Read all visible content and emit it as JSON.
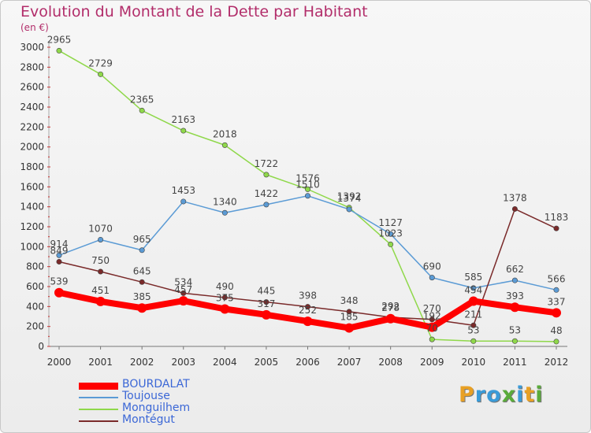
{
  "title": "Evolution du Montant de la Dette par Habitant",
  "subtitle": "(en €)",
  "logo": {
    "text": "Proxiti",
    "colors": [
      "#e8a024",
      "#3a9bd8",
      "#3a9bd8",
      "#5aab3a",
      "#3a9bd8",
      "#e8a024",
      "#5aab3a"
    ]
  },
  "chart_data": {
    "type": "line",
    "title": "Evolution du Montant de la Dette par Habitant",
    "ylabel": "(en €)",
    "x": [
      "2000",
      "2001",
      "2002",
      "2003",
      "2004",
      "2005",
      "2006",
      "2007",
      "2008",
      "2009",
      "2010",
      "2011",
      "2012"
    ],
    "ylim": [
      0,
      3000
    ],
    "yticks": [
      "0",
      "200",
      "400",
      "600",
      "800",
      "1000",
      "1200",
      "1400",
      "1600",
      "1800",
      "2000",
      "2200",
      "2400",
      "2600",
      "2800",
      "3000"
    ],
    "grid": false,
    "legend": "bottom-left",
    "series": [
      {
        "name": "BOURDALAT",
        "color": "#ff0000",
        "width": 8,
        "values": [
          539,
          451,
          385,
          457,
          375,
          317,
          252,
          185,
          278,
          192,
          454,
          393,
          337
        ],
        "labels": [
          "539",
          "451",
          "385",
          "457",
          "375",
          "317",
          "252",
          "185",
          "278",
          "192",
          "454",
          "393",
          "337"
        ]
      },
      {
        "name": "Toujouse",
        "color": "#5b9bd5",
        "width": 1.5,
        "values": [
          914,
          1070,
          965,
          1453,
          1340,
          1422,
          1510,
          1374,
          1127,
          690,
          585,
          662,
          566
        ],
        "labels": [
          "914",
          "1070",
          "965",
          "1453",
          "1340",
          "1422",
          "1510",
          "1374",
          "1127",
          "690",
          "585",
          "662",
          "566"
        ]
      },
      {
        "name": "Monguilhem",
        "color": "#8fd84a",
        "width": 1.5,
        "values": [
          2965,
          2729,
          2365,
          2163,
          2018,
          1722,
          1576,
          1392,
          1023,
          70,
          53,
          53,
          48
        ],
        "labels": [
          "2965",
          "2729",
          "2365",
          "2163",
          "2018",
          "1722",
          "1576",
          "1392",
          "1023",
          "70",
          "53",
          "53",
          "48"
        ]
      },
      {
        "name": "Montégut",
        "color": "#7a2a2a",
        "width": 1.5,
        "values": [
          849,
          750,
          645,
          534,
          490,
          445,
          398,
          348,
          292,
          270,
          211,
          1378,
          1183
        ],
        "labels": [
          "849",
          "750",
          "645",
          "534",
          "490",
          "445",
          "398",
          "348",
          "292",
          "270",
          "211",
          "1378",
          "1183"
        ]
      }
    ]
  }
}
